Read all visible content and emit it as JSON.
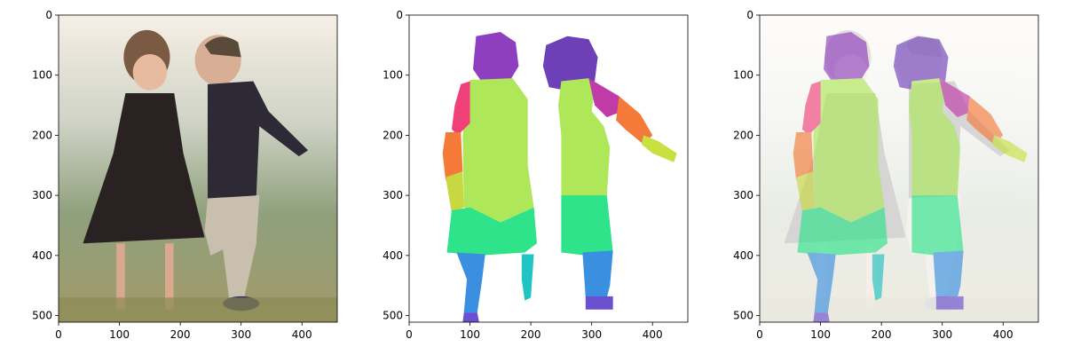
{
  "chart_data": [
    {
      "type": "image",
      "xlim": [
        0,
        458
      ],
      "ylim": [
        511,
        0
      ],
      "xticks": [
        0,
        100,
        200,
        300,
        400
      ],
      "yticks": [
        0,
        100,
        200,
        300,
        400,
        500
      ]
    },
    {
      "type": "image",
      "xlim": [
        0,
        458
      ],
      "ylim": [
        511,
        0
      ],
      "xticks": [
        0,
        100,
        200,
        300,
        400
      ],
      "yticks": [
        0,
        100,
        200,
        300,
        400,
        500
      ]
    },
    {
      "type": "image",
      "xlim": [
        0,
        458
      ],
      "ylim": [
        511,
        0
      ],
      "xticks": [
        0,
        100,
        200,
        300,
        400
      ],
      "yticks": [
        0,
        100,
        200,
        300,
        400,
        500
      ]
    }
  ]
}
